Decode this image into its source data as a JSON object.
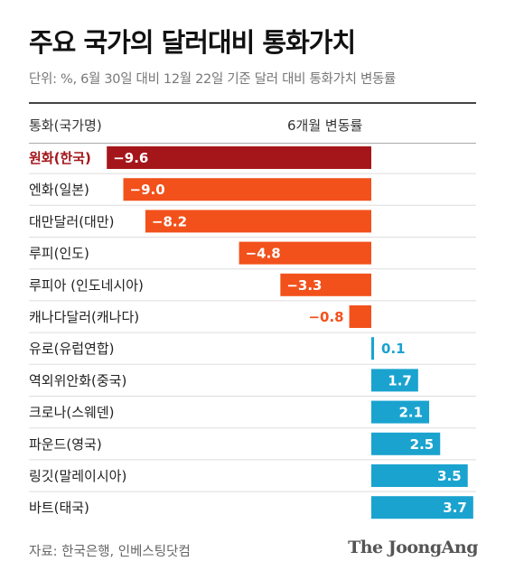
{
  "title": "주요 국가의 달러대비 통화가치",
  "subtitle": "단위: %, 6월 30일 대비 12월 22일 기준 달러 대비 통화가치 변동률",
  "header": {
    "category": "통화(국가명)",
    "value": "6개월 변동률"
  },
  "source": "자료: 한국은행, 인베스팅닷컴",
  "logo": "The JoongAng",
  "colors": {
    "highlight": "#a4161a",
    "negative": "#f2511b",
    "positive": "#1aa3cf"
  },
  "chart_data": {
    "type": "bar",
    "orientation": "horizontal",
    "categories": [
      "원화(한국)",
      "엔화(일본)",
      "대만달러(대만)",
      "루피(인도)",
      "루피아 (인도네시아)",
      "캐나다달러(캐나다)",
      "유로(유럽연합)",
      "역외위안화(중국)",
      "크로나(스웨덴)",
      "파운드(영국)",
      "링깃(말레이시아)",
      "바트(태국)"
    ],
    "values": [
      -9.6,
      -9.0,
      -8.2,
      -4.8,
      -3.3,
      -0.8,
      0.1,
      1.7,
      2.1,
      2.5,
      3.5,
      3.7
    ],
    "labels": [
      "−9.6",
      "−9.0",
      "−8.2",
      "−4.8",
      "−3.3",
      "−0.8",
      "0.1",
      "1.7",
      "2.1",
      "2.5",
      "3.5",
      "3.7"
    ],
    "highlight_index": 0,
    "xlim": [
      -9.6,
      3.7
    ]
  }
}
